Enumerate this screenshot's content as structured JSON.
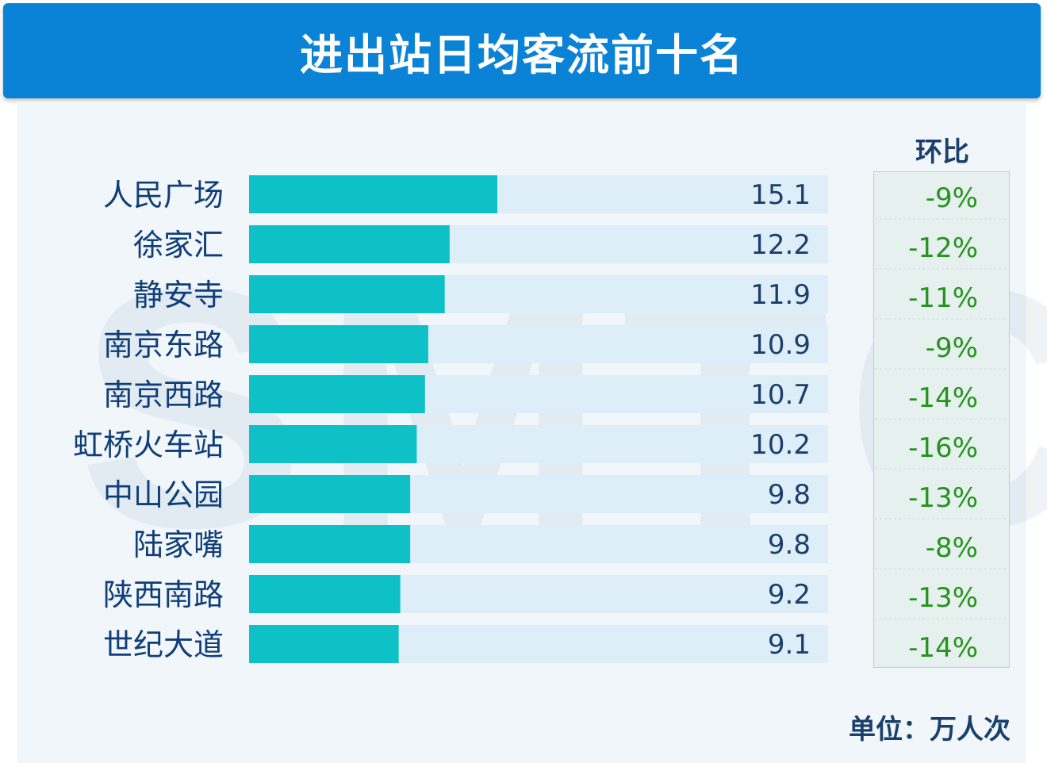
{
  "header": {
    "title": "进出站日均客流前十名"
  },
  "watermark": "SMTC",
  "change_column_title": "环比",
  "unit_label": "单位：万人次",
  "colors": {
    "header_bg": "#0a83d6",
    "bar_fill": "#0ec1c6",
    "track_fill": "#deeef8",
    "change_text": "#25931e",
    "label_text": "#0f3e78"
  },
  "chart_data": {
    "type": "bar",
    "orientation": "horizontal",
    "title": "进出站日均客流前十名",
    "unit": "单位：万人次",
    "categories": [
      "人民广场",
      "徐家汇",
      "静安寺",
      "南京东路",
      "南京西路",
      "虹桥火车站",
      "中山公园",
      "陆家嘴",
      "陕西南路",
      "世纪大道"
    ],
    "values": [
      15.1,
      12.2,
      11.9,
      10.9,
      10.7,
      10.2,
      9.8,
      9.8,
      9.2,
      9.1
    ],
    "value_labels": [
      "15.1",
      "12.2",
      "11.9",
      "10.9",
      "10.7",
      "10.2",
      "9.8",
      "9.8",
      "9.2",
      "9.1"
    ],
    "changes": [
      "-9%",
      "-12%",
      "-11%",
      "-9%",
      "-14%",
      "-16%",
      "-13%",
      "-8%",
      "-13%",
      "-14%"
    ],
    "change_header": "环比"
  }
}
